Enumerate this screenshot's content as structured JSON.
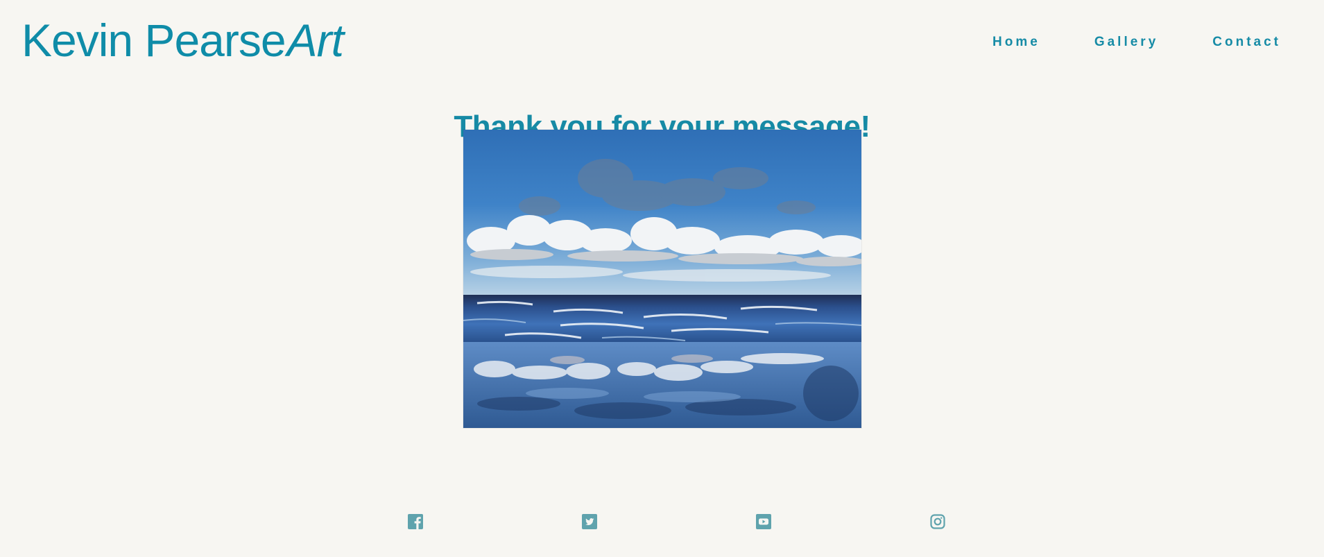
{
  "header": {
    "logo_main": "Kevin Pearse",
    "logo_accent": "Art"
  },
  "nav": {
    "items": [
      {
        "label": "Home"
      },
      {
        "label": "Gallery"
      },
      {
        "label": "Contact"
      }
    ]
  },
  "main": {
    "title": "Thank you for your message!"
  },
  "social": {
    "icons": [
      "facebook-icon",
      "twitter-icon",
      "youtube-icon",
      "instagram-icon"
    ]
  },
  "colors": {
    "background": "#f7f6f2",
    "accent": "#0f8ca8",
    "social_icon": "#5fa3ad"
  }
}
